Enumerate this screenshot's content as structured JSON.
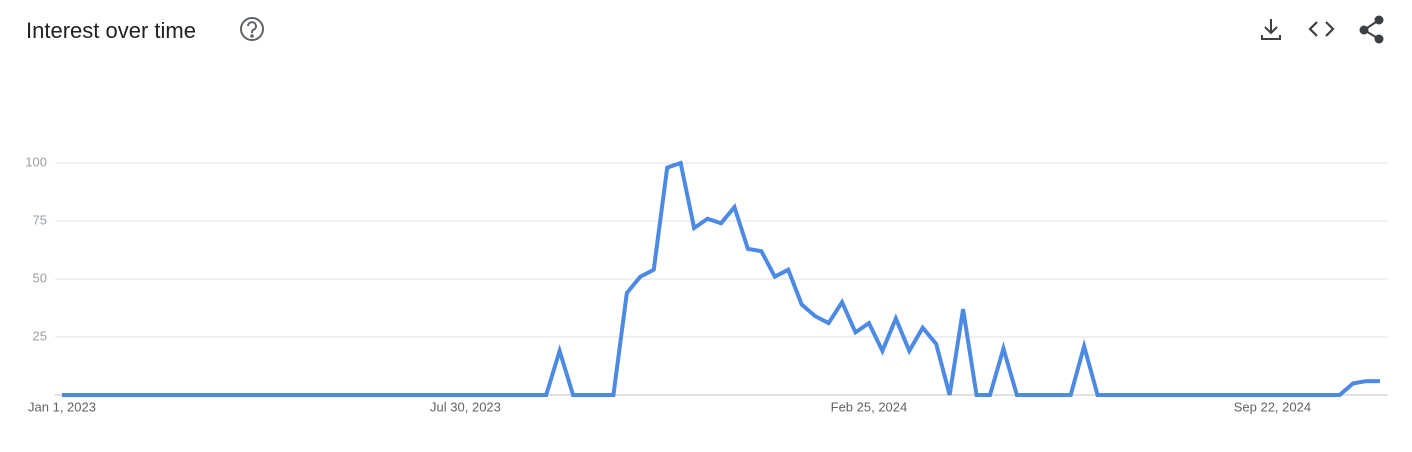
{
  "chart_data": {
    "type": "line",
    "title": "Interest over time",
    "categories": [
      "Jan 1, 2023",
      null,
      null,
      null,
      null,
      null,
      null,
      null,
      null,
      null,
      null,
      null,
      null,
      null,
      null,
      null,
      null,
      null,
      null,
      null,
      null,
      null,
      null,
      null,
      null,
      null,
      null,
      null,
      null,
      null,
      "Jul 30, 2023",
      null,
      null,
      null,
      null,
      null,
      null,
      null,
      null,
      null,
      null,
      null,
      null,
      null,
      null,
      null,
      null,
      null,
      null,
      null,
      null,
      null,
      null,
      null,
      null,
      null,
      null,
      null,
      null,
      null,
      "Feb 25, 2024",
      null,
      null,
      null,
      null,
      null,
      null,
      null,
      null,
      null,
      null,
      null,
      null,
      null,
      null,
      null,
      null,
      null,
      null,
      null,
      null,
      null,
      null,
      null,
      null,
      null,
      null,
      null,
      null,
      null,
      "Sep 22, 2024",
      null,
      null,
      null,
      null,
      null,
      null,
      null,
      null
    ],
    "values": [
      0,
      0,
      0,
      0,
      0,
      0,
      0,
      0,
      0,
      0,
      0,
      0,
      0,
      0,
      0,
      0,
      0,
      0,
      0,
      0,
      0,
      0,
      0,
      0,
      0,
      0,
      0,
      0,
      0,
      0,
      0,
      0,
      0,
      0,
      0,
      0,
      0,
      19,
      0,
      0,
      0,
      0,
      44,
      51,
      54,
      98,
      100,
      72,
      76,
      74,
      81,
      63,
      62,
      51,
      54,
      39,
      34,
      31,
      40,
      27,
      31,
      19,
      33,
      19,
      29,
      22,
      0,
      37,
      0,
      0,
      20,
      0,
      0,
      0,
      0,
      0,
      21,
      0,
      0,
      0,
      0,
      0,
      0,
      0,
      0,
      0,
      0,
      0,
      0,
      0,
      0,
      0,
      0,
      0,
      0,
      0,
      5,
      6,
      6
    ],
    "color": "#4c8ae4",
    "ylim": [
      0,
      100
    ],
    "yticks": [
      25,
      50,
      75,
      100
    ],
    "grid": true
  }
}
